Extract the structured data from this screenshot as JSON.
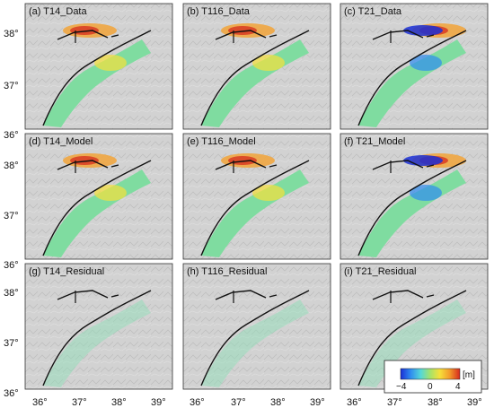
{
  "figure": {
    "panels": [
      {
        "label": "(a) T14_Data",
        "track": "T14",
        "kind": "data"
      },
      {
        "label": "(b) T116_Data",
        "track": "T116",
        "kind": "data"
      },
      {
        "label": "(c) T21_Data",
        "track": "T21",
        "kind": "data"
      },
      {
        "label": "(d) T14_Model",
        "track": "T14",
        "kind": "model"
      },
      {
        "label": "(e) T116_Model",
        "track": "T116",
        "kind": "model"
      },
      {
        "label": "(f) T21_Model",
        "track": "T21",
        "kind": "model"
      },
      {
        "label": "(g) T14_Residual",
        "track": "T14",
        "kind": "residual"
      },
      {
        "label": "(h) T116_Residual",
        "track": "T116",
        "kind": "residual"
      },
      {
        "label": "(i) T21_Residual",
        "track": "T21",
        "kind": "residual"
      }
    ],
    "y_tick_labels": [
      "38°",
      "37°",
      "36°"
    ],
    "x_tick_labels": [
      "36°",
      "37°",
      "38°",
      "39°"
    ],
    "colorbar": {
      "unit_label": "[m]",
      "tick_labels": [
        "−4",
        "0",
        "4"
      ],
      "colors": [
        "#1a2fd6",
        "#2f8cf0",
        "#55d8d8",
        "#a6e36a",
        "#f6e03a",
        "#f39a2a",
        "#d6281e"
      ]
    },
    "colors": {
      "hillshade": "#cfcfcf",
      "fault_trace": "#111111"
    }
  }
}
